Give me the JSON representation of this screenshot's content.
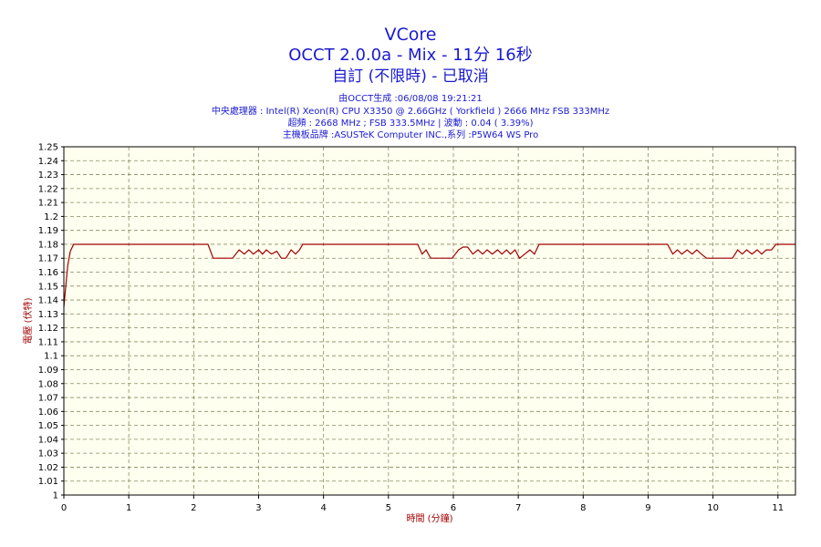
{
  "header": {
    "title": "VCore",
    "subtitle": "OCCT 2.0.0a - Mix - 11分 16秒",
    "subtitle2": "自訂 (不限時) - 已取消",
    "info_lines": [
      "由OCCT生成 :06/08/08 19:21:21",
      "中央處理器 : Intel(R) Xeon(R) CPU X3350 @ 2.66GHz ( Yorkfield ) 2666 MHz FSB 333MHz",
      "超頻 : 2668 MHz ; FSB 333.5MHz | 波動 : 0.04 ( 3.39%)",
      "主機板品牌 :ASUSTeK Computer INC.,系列 :P5W64 WS Pro"
    ]
  },
  "colors": {
    "title": "#1a1ad0",
    "series": "#a00000",
    "plot_background": "#fffff0",
    "grid": "#8a8a60",
    "axis_label": "#a00000"
  },
  "chart_data": {
    "type": "line",
    "xlabel": "時間 (分鐘)",
    "ylabel": "電壓 (伏特)",
    "xlim": [
      0,
      11.27
    ],
    "ylim": [
      1.0,
      1.25
    ],
    "xticks": [
      0,
      1,
      2,
      3,
      4,
      5,
      6,
      7,
      8,
      9,
      10,
      11
    ],
    "yticks": [
      "1",
      "1.01",
      "1.02",
      "1.03",
      "1.04",
      "1.05",
      "1.06",
      "1.07",
      "1.08",
      "1.09",
      "1.1",
      "1.11",
      "1.12",
      "1.13",
      "1.14",
      "1.15",
      "1.16",
      "1.17",
      "1.18",
      "1.19",
      "1.2",
      "1.21",
      "1.22",
      "1.23",
      "1.24",
      "1.25"
    ],
    "grid": true,
    "series": [
      {
        "points": [
          [
            0,
            1.135
          ],
          [
            0.03,
            1.15
          ],
          [
            0.06,
            1.165
          ],
          [
            0.1,
            1.175
          ],
          [
            0.15,
            1.18
          ],
          [
            2.22,
            1.18
          ],
          [
            2.3,
            1.17
          ],
          [
            2.6,
            1.17
          ],
          [
            2.7,
            1.176
          ],
          [
            2.78,
            1.173
          ],
          [
            2.85,
            1.176
          ],
          [
            2.92,
            1.173
          ],
          [
            3.0,
            1.176
          ],
          [
            3.06,
            1.173
          ],
          [
            3.12,
            1.176
          ],
          [
            3.2,
            1.173
          ],
          [
            3.28,
            1.175
          ],
          [
            3.35,
            1.17
          ],
          [
            3.42,
            1.17
          ],
          [
            3.5,
            1.176
          ],
          [
            3.57,
            1.173
          ],
          [
            3.63,
            1.176
          ],
          [
            3.68,
            1.18
          ],
          [
            5.45,
            1.18
          ],
          [
            5.52,
            1.173
          ],
          [
            5.58,
            1.176
          ],
          [
            5.65,
            1.17
          ],
          [
            5.98,
            1.17
          ],
          [
            6.08,
            1.176
          ],
          [
            6.15,
            1.178
          ],
          [
            6.22,
            1.178
          ],
          [
            6.3,
            1.173
          ],
          [
            6.38,
            1.176
          ],
          [
            6.45,
            1.173
          ],
          [
            6.52,
            1.176
          ],
          [
            6.6,
            1.173
          ],
          [
            6.68,
            1.176
          ],
          [
            6.75,
            1.173
          ],
          [
            6.82,
            1.176
          ],
          [
            6.88,
            1.173
          ],
          [
            6.95,
            1.176
          ],
          [
            7.02,
            1.17
          ],
          [
            7.1,
            1.173
          ],
          [
            7.18,
            1.176
          ],
          [
            7.25,
            1.173
          ],
          [
            7.32,
            1.18
          ],
          [
            9.3,
            1.18
          ],
          [
            9.38,
            1.173
          ],
          [
            9.45,
            1.176
          ],
          [
            9.52,
            1.173
          ],
          [
            9.6,
            1.176
          ],
          [
            9.68,
            1.173
          ],
          [
            9.75,
            1.176
          ],
          [
            9.82,
            1.173
          ],
          [
            9.9,
            1.17
          ],
          [
            10.3,
            1.17
          ],
          [
            10.38,
            1.176
          ],
          [
            10.45,
            1.173
          ],
          [
            10.52,
            1.176
          ],
          [
            10.6,
            1.173
          ],
          [
            10.68,
            1.176
          ],
          [
            10.75,
            1.173
          ],
          [
            10.82,
            1.176
          ],
          [
            10.9,
            1.176
          ],
          [
            10.97,
            1.18
          ],
          [
            11.27,
            1.18
          ]
        ]
      }
    ]
  }
}
